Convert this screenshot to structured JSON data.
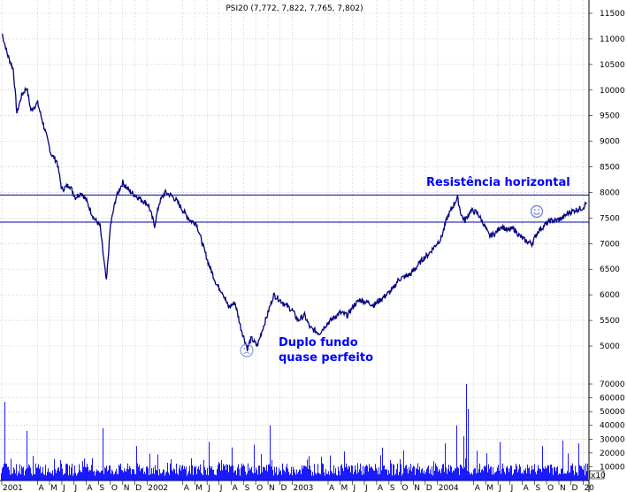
{
  "chart_data": [
    {
      "type": "line",
      "title": "PSI20 (7,772, 7,822, 7,765, 7,802)",
      "xlabel": "",
      "ylabel": "",
      "ylim": [
        4500,
        11600
      ],
      "y_ticks": [
        "11500",
        "11000",
        "10500",
        "10000",
        "9500",
        "9000",
        "8500",
        "8000",
        "7500",
        "7000",
        "6500",
        "6000",
        "5500",
        "5000"
      ],
      "x_ticks": [
        {
          "label": "2001",
          "date": "2001-01"
        },
        {
          "label": "A",
          "date": "2001-04"
        },
        {
          "label": "M",
          "date": "2001-05"
        },
        {
          "label": "J",
          "date": "2001-06"
        },
        {
          "label": "J",
          "date": "2001-07"
        },
        {
          "label": "A",
          "date": "2001-08"
        },
        {
          "label": "S",
          "date": "2001-09"
        },
        {
          "label": "O",
          "date": "2001-10"
        },
        {
          "label": "N",
          "date": "2001-11"
        },
        {
          "label": "D",
          "date": "2001-12"
        },
        {
          "label": "2002",
          "date": "2002-01"
        },
        {
          "label": "A",
          "date": "2002-04"
        },
        {
          "label": "M",
          "date": "2002-05"
        },
        {
          "label": "J",
          "date": "2002-06"
        },
        {
          "label": "J",
          "date": "2002-07"
        },
        {
          "label": "A",
          "date": "2002-08"
        },
        {
          "label": "S",
          "date": "2002-09"
        },
        {
          "label": "O",
          "date": "2002-10"
        },
        {
          "label": "N",
          "date": "2002-11"
        },
        {
          "label": "D",
          "date": "2002-12"
        },
        {
          "label": "2003",
          "date": "2003-01"
        },
        {
          "label": "A",
          "date": "2003-04"
        },
        {
          "label": "M",
          "date": "2003-05"
        },
        {
          "label": "J",
          "date": "2003-06"
        },
        {
          "label": "J",
          "date": "2003-07"
        },
        {
          "label": "A",
          "date": "2003-08"
        },
        {
          "label": "S",
          "date": "2003-09"
        },
        {
          "label": "O",
          "date": "2003-10"
        },
        {
          "label": "N",
          "date": "2003-11"
        },
        {
          "label": "D",
          "date": "2003-12"
        },
        {
          "label": "2004",
          "date": "2004-01"
        },
        {
          "label": "A",
          "date": "2004-04"
        },
        {
          "label": "M",
          "date": "2004-05"
        },
        {
          "label": "J",
          "date": "2004-06"
        },
        {
          "label": "J",
          "date": "2004-07"
        },
        {
          "label": "A",
          "date": "2004-08"
        },
        {
          "label": "S",
          "date": "2004-09"
        },
        {
          "label": "O",
          "date": "2004-10"
        },
        {
          "label": "N",
          "date": "2004-11"
        },
        {
          "label": "D",
          "date": "2004-12"
        },
        {
          "label": "20",
          "date": "2005-01"
        }
      ],
      "series": [
        {
          "color": "#000080",
          "points": [
            [
              "2001-01-02",
              11100
            ],
            [
              "2001-01-15",
              10700
            ],
            [
              "2001-01-30",
              10400
            ],
            [
              "2001-02-08",
              9550
            ],
            [
              "2001-02-20",
              9900
            ],
            [
              "2001-03-05",
              10050
            ],
            [
              "2001-03-15",
              9600
            ],
            [
              "2001-04-01",
              9750
            ],
            [
              "2001-04-20",
              9200
            ],
            [
              "2001-05-05",
              8750
            ],
            [
              "2001-05-20",
              8600
            ],
            [
              "2001-06-01",
              8050
            ],
            [
              "2001-06-20",
              8150
            ],
            [
              "2001-07-05",
              7900
            ],
            [
              "2001-07-20",
              8000
            ],
            [
              "2001-08-01",
              7850
            ],
            [
              "2001-08-20",
              7500
            ],
            [
              "2001-09-05",
              7350
            ],
            [
              "2001-09-12",
              6850
            ],
            [
              "2001-09-21",
              6250
            ],
            [
              "2001-10-01",
              7350
            ],
            [
              "2001-10-15",
              7900
            ],
            [
              "2001-11-01",
              8200
            ],
            [
              "2001-11-15",
              8050
            ],
            [
              "2001-12-01",
              7950
            ],
            [
              "2001-12-20",
              7850
            ],
            [
              "2002-01-05",
              7750
            ],
            [
              "2002-01-20",
              7350
            ],
            [
              "2002-02-01",
              7800
            ],
            [
              "2002-02-15",
              8000
            ],
            [
              "2002-03-01",
              7950
            ],
            [
              "2002-03-15",
              7850
            ],
            [
              "2002-04-01",
              7650
            ],
            [
              "2002-04-20",
              7450
            ],
            [
              "2002-05-05",
              7400
            ],
            [
              "2002-05-20",
              7000
            ],
            [
              "2002-06-05",
              6600
            ],
            [
              "2002-06-25",
              6200
            ],
            [
              "2002-07-10",
              6050
            ],
            [
              "2002-07-25",
              5750
            ],
            [
              "2002-08-10",
              5850
            ],
            [
              "2002-08-25",
              5350
            ],
            [
              "2002-09-10",
              4950
            ],
            [
              "2002-09-20",
              5150
            ],
            [
              "2002-10-05",
              5000
            ],
            [
              "2002-10-15",
              5250
            ],
            [
              "2002-11-01",
              5650
            ],
            [
              "2002-11-15",
              6000
            ],
            [
              "2002-12-01",
              5900
            ],
            [
              "2002-12-15",
              5800
            ],
            [
              "2003-01-01",
              5700
            ],
            [
              "2003-01-15",
              5500
            ],
            [
              "2003-02-01",
              5600
            ],
            [
              "2003-02-15",
              5350
            ],
            [
              "2003-03-10",
              5250
            ],
            [
              "2003-03-25",
              5400
            ],
            [
              "2003-04-15",
              5550
            ],
            [
              "2003-05-01",
              5650
            ],
            [
              "2003-05-20",
              5600
            ],
            [
              "2003-06-05",
              5800
            ],
            [
              "2003-06-20",
              5900
            ],
            [
              "2003-07-10",
              5850
            ],
            [
              "2003-07-25",
              5800
            ],
            [
              "2003-08-10",
              5900
            ],
            [
              "2003-08-25",
              6000
            ],
            [
              "2003-09-10",
              6100
            ],
            [
              "2003-09-25",
              6300
            ],
            [
              "2003-10-10",
              6350
            ],
            [
              "2003-10-25",
              6400
            ],
            [
              "2003-11-10",
              6550
            ],
            [
              "2003-11-25",
              6700
            ],
            [
              "2003-12-10",
              6800
            ],
            [
              "2003-12-30",
              7000
            ],
            [
              "2004-01-10",
              7100
            ],
            [
              "2004-01-25",
              7500
            ],
            [
              "2004-02-10",
              7750
            ],
            [
              "2004-02-20",
              7900
            ],
            [
              "2004-03-01",
              7550
            ],
            [
              "2004-03-10",
              7450
            ],
            [
              "2004-03-25",
              7650
            ],
            [
              "2004-04-10",
              7600
            ],
            [
              "2004-04-25",
              7400
            ],
            [
              "2004-05-10",
              7150
            ],
            [
              "2004-05-25",
              7200
            ],
            [
              "2004-06-10",
              7350
            ],
            [
              "2004-06-25",
              7250
            ],
            [
              "2004-07-10",
              7300
            ],
            [
              "2004-07-25",
              7150
            ],
            [
              "2004-08-10",
              7050
            ],
            [
              "2004-08-25",
              7000
            ],
            [
              "2004-09-10",
              7250
            ],
            [
              "2004-09-25",
              7350
            ],
            [
              "2004-10-10",
              7450
            ],
            [
              "2004-10-25",
              7450
            ],
            [
              "2004-11-10",
              7500
            ],
            [
              "2004-11-25",
              7600
            ],
            [
              "2004-12-10",
              7650
            ],
            [
              "2004-12-31",
              7700
            ],
            [
              "2005-01-10",
              7802
            ]
          ]
        }
      ],
      "reference_lines": [
        {
          "y": 7950,
          "color": "#0000aa"
        },
        {
          "y": 7420,
          "color": "#0000aa"
        }
      ],
      "annotations": [
        {
          "text": "Resistência horizontal",
          "color": "#0000ff"
        },
        {
          "line1": "Duplo fundo",
          "line2": "quase perfeito",
          "color": "#0000ff"
        }
      ]
    },
    {
      "type": "bar",
      "title": "",
      "ylim": [
        0,
        75000
      ],
      "y_ticks": [
        "70000",
        "60000",
        "50000",
        "40000",
        "30000",
        "20000",
        "10000"
      ],
      "scale_label": "x10",
      "color": "#0000ff",
      "note": "daily volume bars — typical 5000–15000 with spikes",
      "spikes": [
        [
          "2001-01-08",
          57000
        ],
        [
          "2001-03-05",
          36000
        ],
        [
          "2001-09-12",
          38000
        ],
        [
          "2001-12-05",
          25000
        ],
        [
          "2002-06-05",
          28000
        ],
        [
          "2002-08-02",
          24000
        ],
        [
          "2002-09-27",
          26000
        ],
        [
          "2002-11-05",
          40000
        ],
        [
          "2003-05-10",
          21000
        ],
        [
          "2003-10-07",
          22000
        ],
        [
          "2004-01-20",
          27000
        ],
        [
          "2004-02-18",
          40000
        ],
        [
          "2004-03-05",
          32000
        ],
        [
          "2004-03-12",
          70000
        ],
        [
          "2004-03-18",
          52000
        ],
        [
          "2004-06-05",
          28000
        ],
        [
          "2004-09-20",
          25000
        ],
        [
          "2004-11-10",
          29000
        ],
        [
          "2004-12-20",
          27000
        ]
      ]
    }
  ]
}
